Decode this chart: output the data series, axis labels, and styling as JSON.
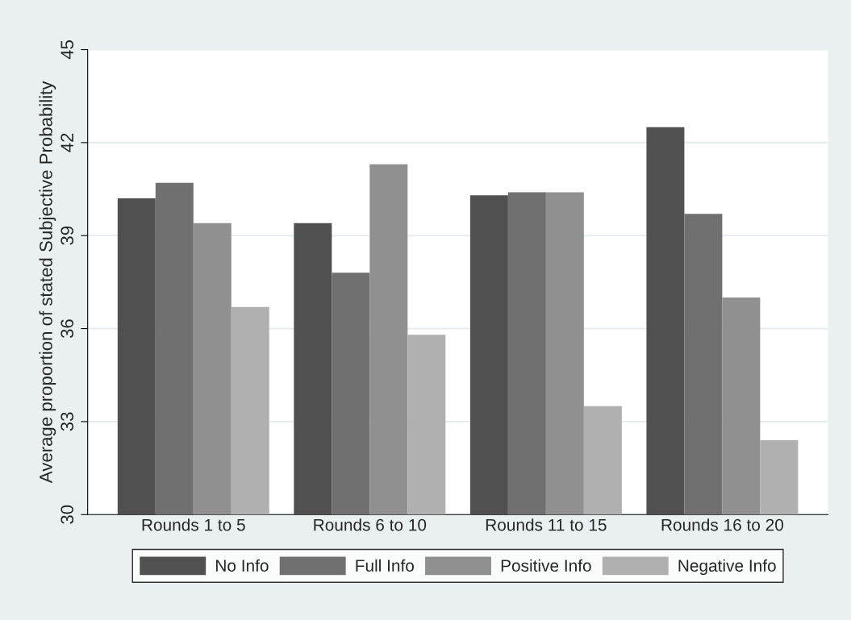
{
  "chart_data": {
    "type": "bar",
    "ylabel": "Average proportion of stated Subjective Probability",
    "categories": [
      "Rounds 1 to 5",
      "Rounds 6 to 10",
      "Rounds 11 to 15",
      "Rounds 16 to 20"
    ],
    "series": [
      {
        "name": "No Info",
        "color": "#505050",
        "values": [
          40.2,
          39.4,
          40.3,
          42.5
        ]
      },
      {
        "name": "Full Info",
        "color": "#707070",
        "values": [
          40.7,
          37.8,
          40.4,
          39.7
        ]
      },
      {
        "name": "Positive Info",
        "color": "#909090",
        "values": [
          39.4,
          41.3,
          40.4,
          37.0
        ]
      },
      {
        "name": "Negative Info",
        "color": "#b0b0b0",
        "values": [
          36.7,
          35.8,
          33.5,
          32.4
        ]
      }
    ],
    "ylim": [
      30,
      45
    ],
    "yticks": [
      30,
      33,
      36,
      39,
      42,
      45
    ],
    "grid": "y",
    "legend": "bottom"
  }
}
